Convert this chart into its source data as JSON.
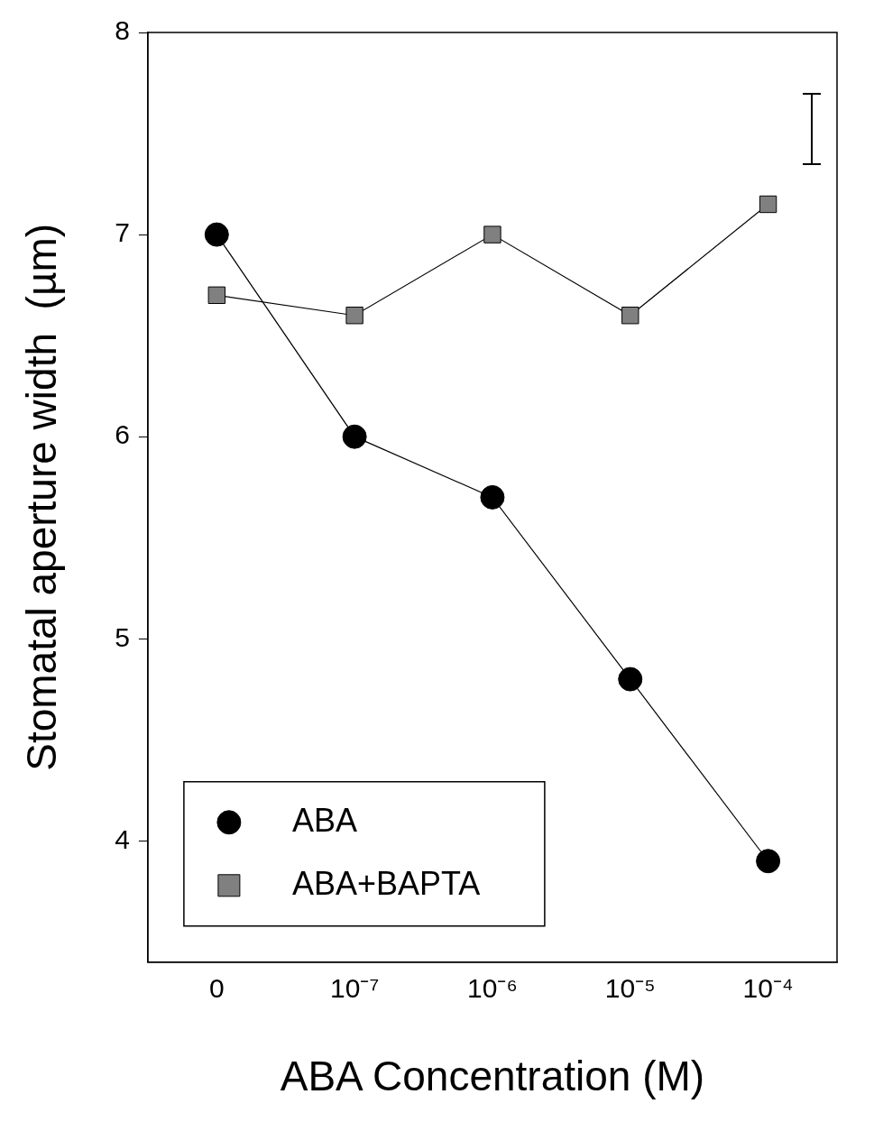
{
  "chart_data": {
    "type": "line",
    "xlabel": "ABA Concentration (M)",
    "ylabel": "Stomatal aperture width  (µm)",
    "categories": [
      "0",
      "10⁻⁷",
      "10⁻⁶",
      "10⁻⁵",
      "10⁻⁴"
    ],
    "series": [
      {
        "name": "ABA",
        "color": "#000000",
        "marker": "circle",
        "values": [
          7.0,
          6.0,
          5.7,
          4.8,
          3.9
        ]
      },
      {
        "name": "ABA+BAPTA",
        "color": "#808080",
        "marker": "square",
        "values": [
          6.7,
          6.6,
          7.0,
          6.6,
          7.15
        ]
      }
    ],
    "ylim": [
      3.4,
      8
    ],
    "yticks": [
      4,
      5,
      6,
      7,
      8
    ],
    "grid": false,
    "legend": "bottom left"
  }
}
